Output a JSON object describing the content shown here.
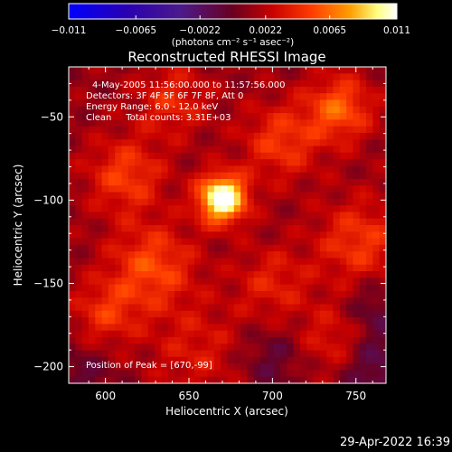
{
  "chart_data": {
    "type": "heatmap",
    "title": "Reconstructed RHESSI Image",
    "xlabel": "Heliocentric X (arcsec)",
    "ylabel": "Heliocentric Y (arcsec)",
    "xlim": [
      578,
      768
    ],
    "ylim": [
      -210,
      -20
    ],
    "x_ticks": [
      600,
      650,
      700,
      750
    ],
    "y_ticks": [
      -200,
      -150,
      -100,
      -50
    ],
    "colorbar": {
      "label": "(photons cm⁻² s⁻¹ asec⁻²)",
      "range": [
        -0.011,
        0.011
      ],
      "tick_values": [
        -0.011,
        -0.0065,
        -0.0022,
        0.0022,
        0.0065,
        0.011
      ],
      "tick_labels": [
        "−0.011",
        "−0.0065",
        "−0.0022",
        "0.0022",
        "0.0065",
        "0.011"
      ],
      "colormap": [
        "#0000ff",
        "#2a00b0",
        "#4b1a8c",
        "#7a0000",
        "#c80000",
        "#ff3c00",
        "#ffa000",
        "#ffff80",
        "#ffffff"
      ]
    },
    "annotations": [
      "4-May-2005 11:56:00.000 to 11:57:56.000",
      "Detectors: 3F 4F 5F 6F 7F 8F, Att 0",
      "Energy Range: 6.0 - 12.0 keV",
      "Clean     Total counts: 3.31E+03"
    ],
    "peak_label": "Position of Peak = [670,-99]",
    "peak": {
      "x": 670,
      "y": -99,
      "value": 0.011
    },
    "blobs": [
      {
        "x": 670,
        "y": -99,
        "w": 10,
        "a": 0.011
      },
      {
        "x": 612,
        "y": -85,
        "w": 16,
        "a": 0.0038
      },
      {
        "x": 628,
        "y": -140,
        "w": 18,
        "a": 0.0042
      },
      {
        "x": 600,
        "y": -168,
        "w": 14,
        "a": 0.0032
      },
      {
        "x": 705,
        "y": -65,
        "w": 16,
        "a": 0.0036
      },
      {
        "x": 740,
        "y": -45,
        "w": 14,
        "a": 0.0048
      },
      {
        "x": 752,
        "y": -125,
        "w": 18,
        "a": 0.0036
      },
      {
        "x": 738,
        "y": -185,
        "w": 16,
        "a": 0.0028
      },
      {
        "x": 655,
        "y": -190,
        "w": 20,
        "a": 0.0022
      },
      {
        "x": 640,
        "y": -40,
        "w": 15,
        "a": 0.003
      },
      {
        "x": 700,
        "y": -150,
        "w": 16,
        "a": 0.0026
      },
      {
        "x": 700,
        "y": -195,
        "w": 14,
        "a": -0.002
      },
      {
        "x": 760,
        "y": -200,
        "w": 16,
        "a": -0.003
      },
      {
        "x": 760,
        "y": -165,
        "w": 12,
        "a": -0.0022
      },
      {
        "x": 585,
        "y": -205,
        "w": 14,
        "a": -0.0018
      }
    ]
  },
  "footer": {
    "date": "29-Apr-2022 16:39"
  }
}
